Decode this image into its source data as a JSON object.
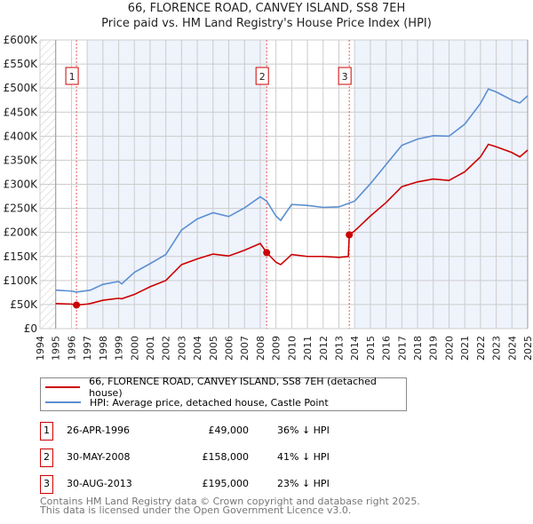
{
  "chart_data": {
    "type": "line",
    "title": "66, FLORENCE ROAD, CANVEY ISLAND, SS8 7EH",
    "subtitle": "Price paid vs. HM Land Registry's House Price Index (HPI)",
    "xlim": [
      1994,
      2025
    ],
    "ylim": [
      0,
      600000
    ],
    "x_ticks": [
      "1994",
      "1995",
      "1996",
      "1997",
      "1998",
      "1999",
      "2000",
      "2001",
      "2002",
      "2003",
      "2004",
      "2005",
      "2006",
      "2007",
      "2008",
      "2009",
      "2010",
      "2011",
      "2012",
      "2013",
      "2014",
      "2015",
      "2016",
      "2017",
      "2018",
      "2019",
      "2020",
      "2021",
      "2022",
      "2023",
      "2024",
      "2025"
    ],
    "y_ticks": [
      {
        "v": 0,
        "label": "£0"
      },
      {
        "v": 50000,
        "label": "£50K"
      },
      {
        "v": 100000,
        "label": "£100K"
      },
      {
        "v": 150000,
        "label": "£150K"
      },
      {
        "v": 200000,
        "label": "£200K"
      },
      {
        "v": 250000,
        "label": "£250K"
      },
      {
        "v": 300000,
        "label": "£300K"
      },
      {
        "v": 350000,
        "label": "£350K"
      },
      {
        "v": 400000,
        "label": "£400K"
      },
      {
        "v": 450000,
        "label": "£450K"
      },
      {
        "v": 500000,
        "label": "£500K"
      },
      {
        "v": 550000,
        "label": "£550K"
      },
      {
        "v": 600000,
        "label": "£600K"
      }
    ],
    "grid": true,
    "colors": {
      "property": "#cc0000",
      "hpi": "#5b8fd0",
      "shade": "#eef3fc"
    },
    "series": [
      {
        "name": "66, FLORENCE ROAD, CANVEY ISLAND, SS8 7EH (detached house)",
        "x": [
          1995,
          1996,
          1996.32,
          1997,
          1997.2,
          1998,
          1999,
          1999.2,
          2000,
          2001,
          2002,
          2003,
          2004,
          2005,
          2006,
          2007,
          2008,
          2008.41,
          2009,
          2009.3,
          2010,
          2011,
          2012,
          2013,
          2013.6,
          2013.66,
          2014,
          2015,
          2016,
          2017,
          2018,
          2019,
          2020,
          2021,
          2022,
          2022.5,
          2023,
          2024,
          2024.5,
          2025
        ],
        "values": [
          52000,
          51000,
          49000,
          51000,
          52000,
          59000,
          63000,
          62000,
          71000,
          87000,
          100000,
          133000,
          145000,
          155000,
          151000,
          163000,
          177000,
          158000,
          138000,
          133000,
          154000,
          150000,
          150000,
          148000,
          150000,
          195000,
          203000,
          234000,
          262000,
          295000,
          305000,
          311000,
          308000,
          326000,
          357000,
          383000,
          378000,
          366000,
          357000,
          371000
        ]
      },
      {
        "name": "HPI: Average price, detached house, Castle Point",
        "x": [
          1995,
          1996,
          1996.32,
          1997,
          1997.2,
          1998,
          1999,
          1999.2,
          2000,
          2001,
          2002,
          2003,
          2004,
          2005,
          2006,
          2007,
          2008,
          2008.41,
          2009,
          2009.3,
          2010,
          2011,
          2012,
          2013,
          2014,
          2015,
          2016,
          2017,
          2018,
          2019,
          2020,
          2021,
          2022,
          2022.5,
          2023,
          2024,
          2024.5,
          2025
        ],
        "values": [
          80000,
          78000,
          76000,
          79000,
          80000,
          92000,
          98000,
          93000,
          117000,
          135000,
          154000,
          205000,
          228000,
          241000,
          233000,
          251000,
          274000,
          265000,
          234000,
          225000,
          258000,
          256000,
          252000,
          253000,
          265000,
          301000,
          341000,
          381000,
          394000,
          401000,
          400000,
          425000,
          468000,
          498000,
          492000,
          475000,
          469000,
          484000
        ]
      }
    ],
    "sales": [
      {
        "num": "1",
        "x": 1996.32,
        "value": 49000,
        "date": "26-APR-1996",
        "price": "£49,000",
        "hpi": "36% ↓ HPI"
      },
      {
        "num": "2",
        "x": 2008.41,
        "value": 158000,
        "date": "30-MAY-2008",
        "price": "£158,000",
        "hpi": "41% ↓ HPI"
      },
      {
        "num": "3",
        "x": 2013.66,
        "value": 195000,
        "date": "30-AUG-2013",
        "price": "£195,000",
        "hpi": "23% ↓ HPI"
      }
    ]
  },
  "footer": {
    "line1": "Contains HM Land Registry data © Crown copyright and database right 2025.",
    "line2": "This data is licensed under the Open Government Licence v3.0."
  }
}
